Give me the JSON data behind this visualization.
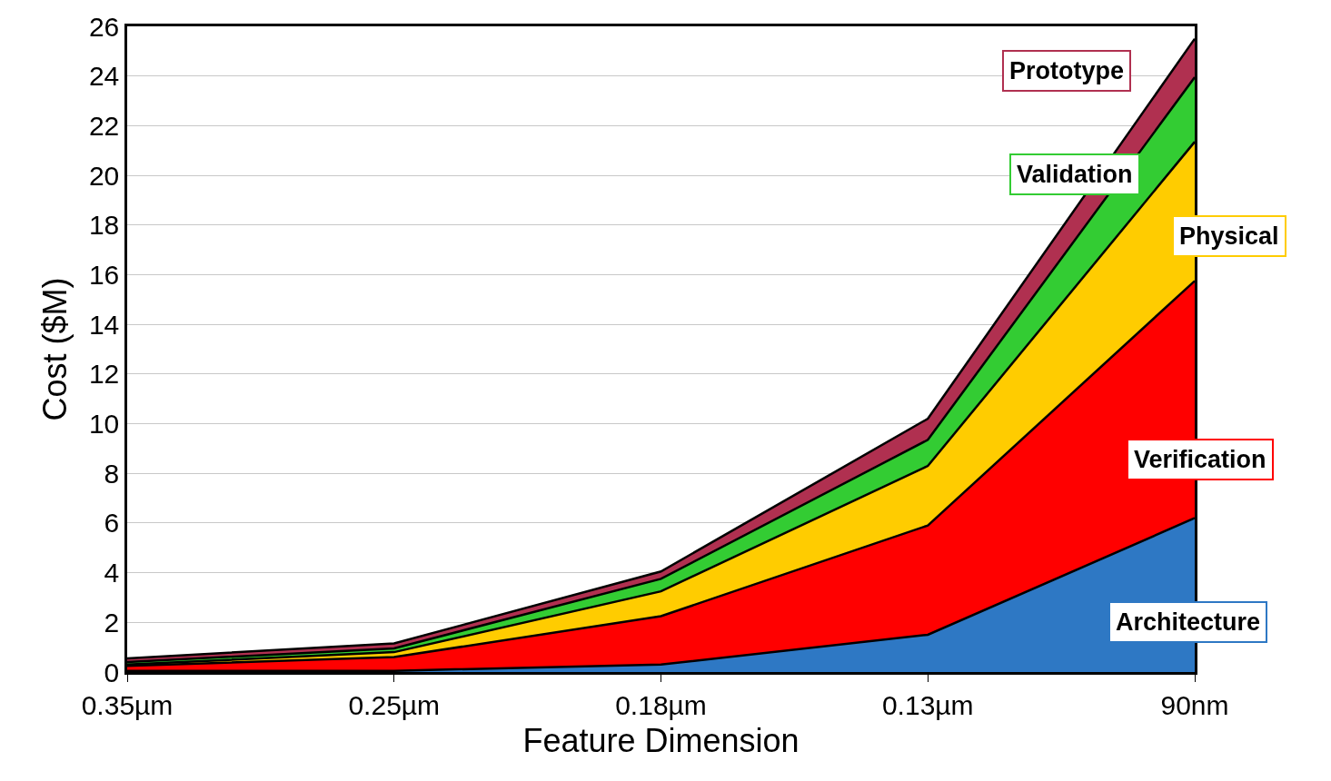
{
  "chart_data": {
    "type": "area",
    "stacked": true,
    "xlabel": "Feature Dimension",
    "ylabel": "Cost ($M)",
    "categories": [
      "0.35µm",
      "0.25µm",
      "0.18µm",
      "0.13µm",
      "90nm"
    ],
    "series": [
      {
        "name": "Architecture",
        "color": "#2e78c4",
        "values": [
          0.05,
          0.05,
          0.3,
          1.5,
          6.2
        ]
      },
      {
        "name": "Verification",
        "color": "#ff0000",
        "values": [
          0.2,
          0.55,
          1.95,
          4.4,
          9.55
        ]
      },
      {
        "name": "Physical",
        "color": "#ffcc00",
        "values": [
          0.05,
          0.2,
          1.0,
          2.4,
          5.6
        ]
      },
      {
        "name": "Validation",
        "color": "#33cc33",
        "values": [
          0.1,
          0.15,
          0.5,
          1.05,
          2.6
        ]
      },
      {
        "name": "Prototype",
        "color": "#b03050",
        "values": [
          0.15,
          0.2,
          0.3,
          0.85,
          1.55
        ]
      }
    ],
    "ylim": [
      0,
      26
    ],
    "yticks": [
      0,
      2,
      4,
      6,
      8,
      10,
      12,
      14,
      16,
      18,
      20,
      22,
      24,
      26
    ],
    "grid": "y",
    "legend": false
  }
}
